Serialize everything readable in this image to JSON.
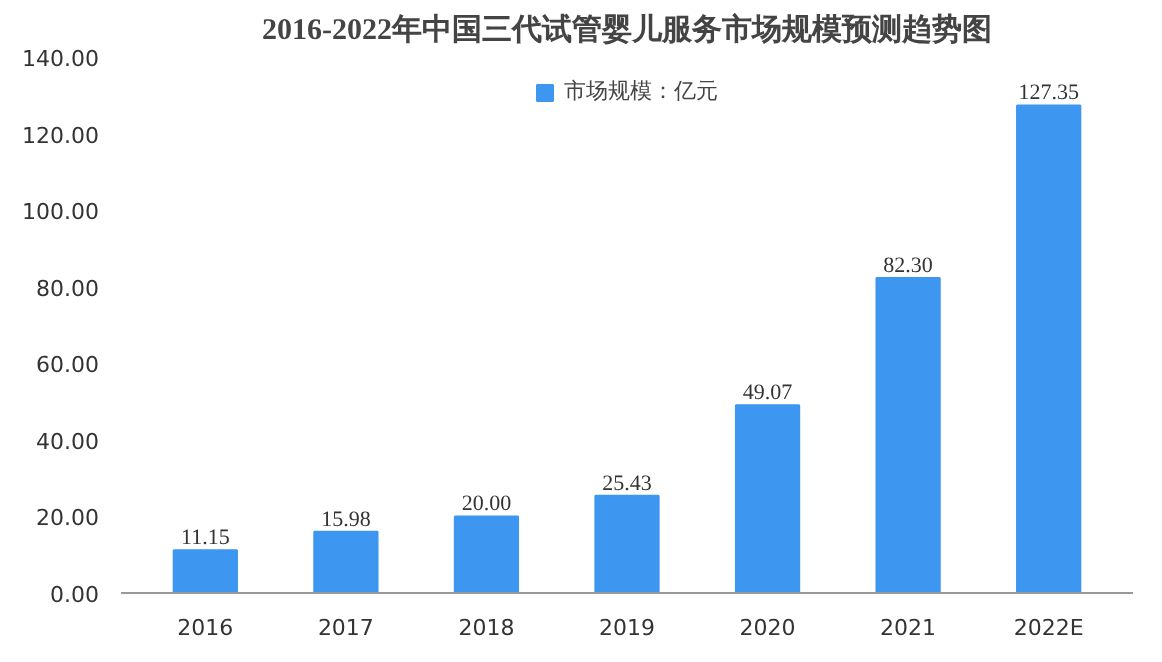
{
  "chart_data": {
    "type": "bar",
    "title": "2016-2022年中国三代试管婴儿服务市场规模预测趋势图",
    "categories": [
      "2016",
      "2017",
      "2018",
      "2019",
      "2020",
      "2021",
      "2022E"
    ],
    "series": [
      {
        "name": "市场规模：亿元",
        "color": "#3d96f0",
        "values": [
          11.15,
          15.98,
          20.0,
          25.43,
          49.07,
          82.3,
          127.35
        ],
        "value_labels": [
          "11.15",
          "15.98",
          "20.00",
          "25.43",
          "49.07",
          "82.30",
          "127.35"
        ]
      }
    ],
    "ylim": [
      0,
      140
    ],
    "yticks": [
      {
        "value": 0,
        "label": "0.00"
      },
      {
        "value": 20,
        "label": "20.00"
      },
      {
        "value": 40,
        "label": "40.00"
      },
      {
        "value": 60,
        "label": "60.00"
      },
      {
        "value": 80,
        "label": "80.00"
      },
      {
        "value": 100,
        "label": "100.00"
      },
      {
        "value": 120,
        "label": "120.00"
      },
      {
        "value": 140,
        "label": "140.00"
      }
    ],
    "grid": false,
    "legend": "top"
  }
}
